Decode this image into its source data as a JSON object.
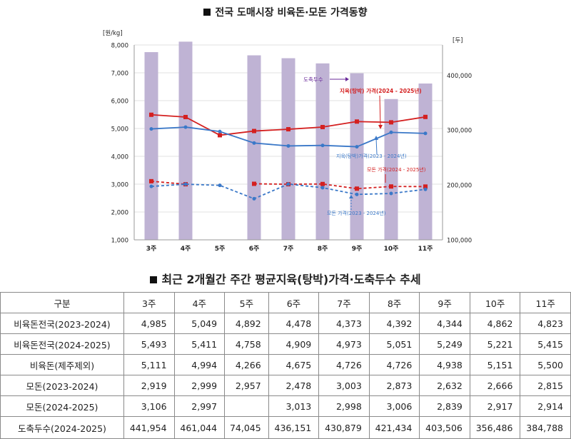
{
  "chart_title": "전국 도매시장 비육돈·모돈 가격동향",
  "table_title": "최근 2개월간 주간 평균지육(탕박)가격·도축두수 추세",
  "chart_data": {
    "type": "bar+line",
    "categories": [
      "3주",
      "4주",
      "5주",
      "6주",
      "7주",
      "8주",
      "9주",
      "10주",
      "11주"
    ],
    "left_axis_unit": "[원/kg]",
    "right_axis_unit": "[두]",
    "left_ticks": [
      "1,000",
      "2,000",
      "3,000",
      "4,000",
      "5,000",
      "6,000",
      "7,000",
      "8,000"
    ],
    "right_ticks": [
      "100,000",
      "200,000",
      "300,000",
      "400,000"
    ],
    "ylim_left": [
      1000,
      8000
    ],
    "ylim_right": [
      100000,
      455000
    ],
    "bars": {
      "name": "도축두수",
      "values": [
        441954,
        461044,
        74045,
        436151,
        430879,
        421434,
        403506,
        356486,
        384788
      ],
      "color": "#bfb3d4"
    },
    "series": [
      {
        "name": "지육(탕박) 가격(2024 - 2025년)",
        "values": [
          5493,
          5411,
          4758,
          4909,
          4973,
          5051,
          5249,
          5221,
          5415
        ],
        "color": "#d42020",
        "dash": false
      },
      {
        "name": "지육(탕박)가격(2023 - 2024년)",
        "values": [
          4985,
          5049,
          4892,
          4478,
          4373,
          4392,
          4344,
          4862,
          4823
        ],
        "color": "#3a78c8",
        "dash": false
      },
      {
        "name": "모돈 가격(2024 - 2025년)",
        "values": [
          3106,
          2997,
          null,
          3013,
          2998,
          3006,
          2839,
          2917,
          2914
        ],
        "color": "#d42020",
        "dash": true
      },
      {
        "name": "모돈 가격(2023 - 2024년)",
        "values": [
          2919,
          2999,
          2957,
          2478,
          3003,
          2873,
          2632,
          2666,
          2815
        ],
        "color": "#3a78c8",
        "dash": true
      }
    ],
    "annotations": {
      "bars_label": "도축두수",
      "price_2425": "지육(탕박) 가격(2024 - 2025년)",
      "price_2324": "지육(탕박)가격(2023 - 2024년)",
      "sow_2425": "모돈 가격(2024 - 2025년)",
      "sow_2324": "모돈 가격(2023 - 2024년)"
    }
  },
  "table": {
    "headers": [
      "구분",
      "3주",
      "4주",
      "5주",
      "6주",
      "7주",
      "8주",
      "9주",
      "10주",
      "11주"
    ],
    "rows": [
      {
        "label": "비육돈전국(2023-2024)",
        "cells": [
          "4,985",
          "5,049",
          "4,892",
          "4,478",
          "4,373",
          "4,392",
          "4,344",
          "4,862",
          "4,823"
        ]
      },
      {
        "label": "비육돈전국(2024-2025)",
        "cells": [
          "5,493",
          "5,411",
          "4,758",
          "4,909",
          "4,973",
          "5,051",
          "5,249",
          "5,221",
          "5,415"
        ]
      },
      {
        "label": "비육돈(제주제외)",
        "cells": [
          "5,111",
          "4,994",
          "4,266",
          "4,675",
          "4,726",
          "4,726",
          "4,938",
          "5,151",
          "5,500"
        ]
      },
      {
        "label": "모돈(2023-2024)",
        "cells": [
          "2,919",
          "2,999",
          "2,957",
          "2,478",
          "3,003",
          "2,873",
          "2,632",
          "2,666",
          "2,815"
        ]
      },
      {
        "label": "모돈(2024-2025)",
        "cells": [
          "3,106",
          "2,997",
          "",
          "3,013",
          "2,998",
          "3,006",
          "2,839",
          "2,917",
          "2,914"
        ]
      },
      {
        "label": "도축두수(2024-2025)",
        "cells": [
          "441,954",
          "461,044",
          "74,045",
          "436,151",
          "430,879",
          "421,434",
          "403,506",
          "356,486",
          "384,788"
        ]
      }
    ]
  }
}
